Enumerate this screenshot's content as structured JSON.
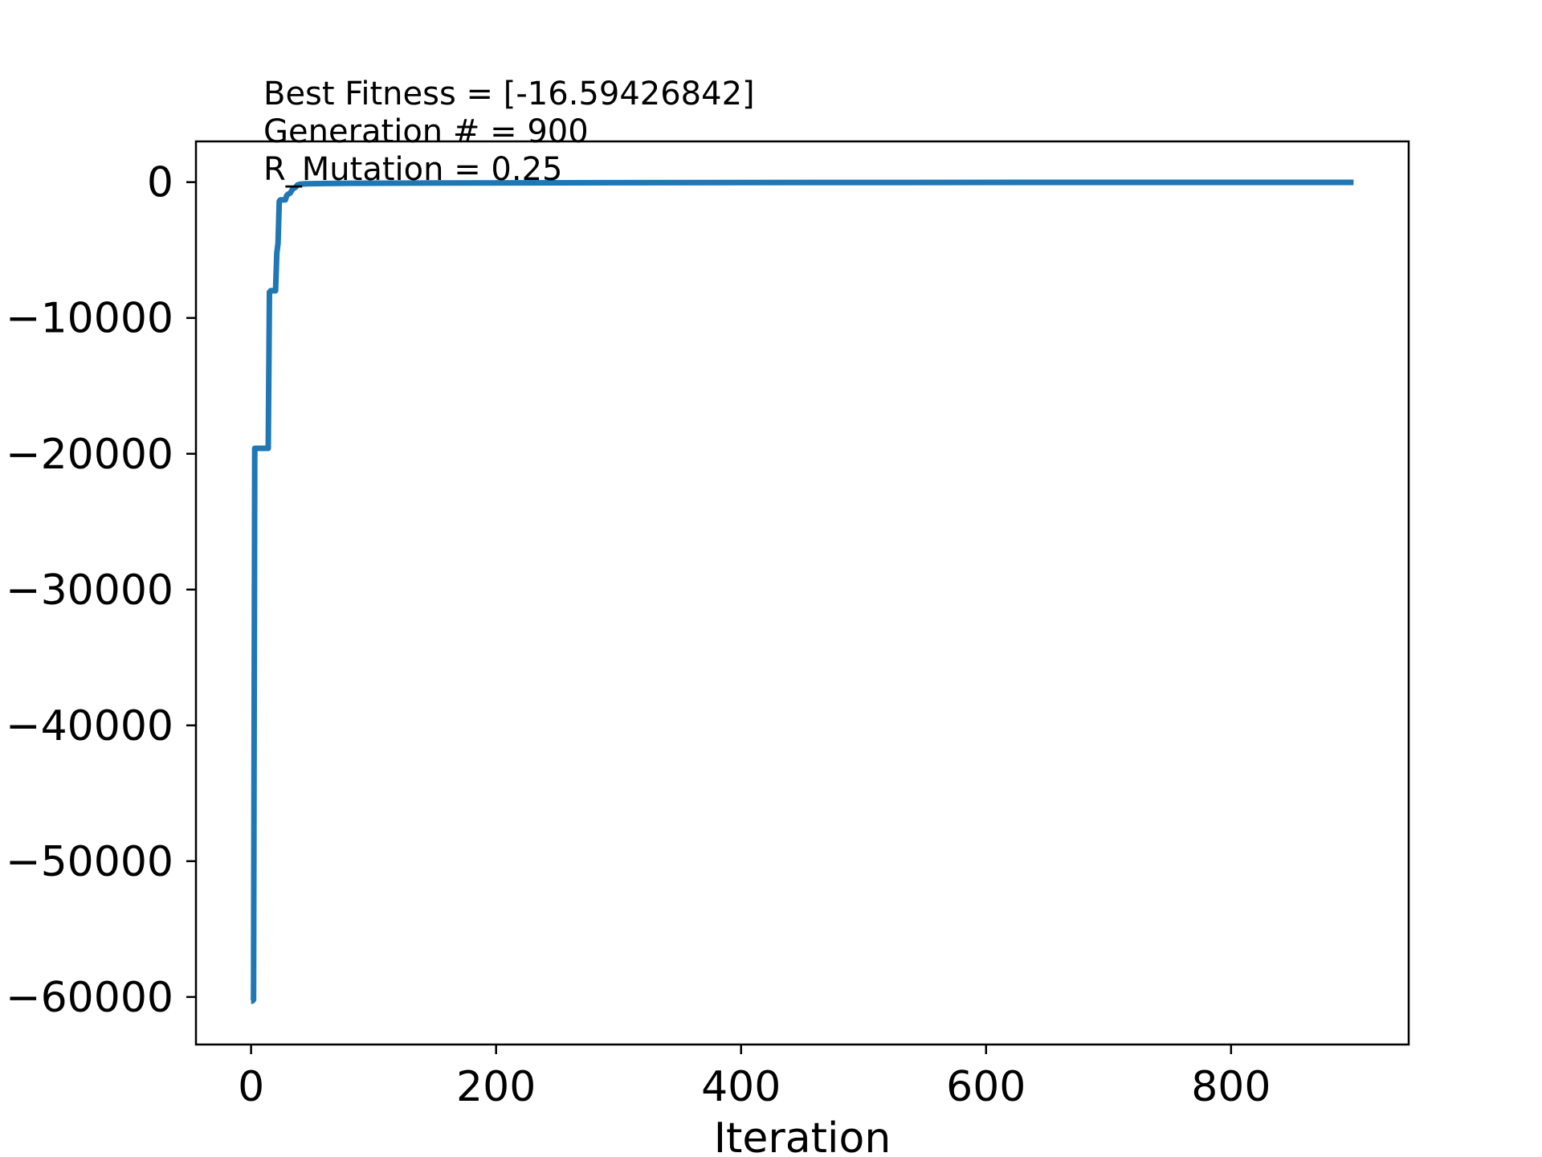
{
  "chart_data": {
    "type": "line",
    "title": "",
    "xlabel": "Iteration",
    "ylabel": "",
    "xlim": [
      -45,
      945
    ],
    "ylim": [
      -63500,
      3000
    ],
    "xticks": [
      0,
      200,
      400,
      600,
      800
    ],
    "xtick_labels": [
      "0",
      "200",
      "400",
      "600",
      "800"
    ],
    "yticks": [
      0,
      -10000,
      -20000,
      -30000,
      -40000,
      -50000,
      -60000
    ],
    "ytick_labels": [
      "0",
      "−10000",
      "−20000",
      "−30000",
      "−40000",
      "−50000",
      "−60000"
    ],
    "grid": false,
    "legend": "none",
    "annotations": [
      "Best Fitness = [-16.59426842]",
      "Generation # = 900",
      "R_Mutation = 0.25"
    ],
    "series": [
      {
        "color": "#1f77b4",
        "x": [
          0,
          1,
          2,
          3,
          14,
          15,
          16,
          20,
          21,
          22,
          23,
          24,
          28,
          29,
          30,
          32,
          34,
          36,
          38,
          40,
          45,
          60,
          80,
          150,
          300,
          500,
          700,
          900
        ],
        "y": [
          -60300,
          -60300,
          -60200,
          -19600,
          -19600,
          -8100,
          -8000,
          -8000,
          -5200,
          -4500,
          -1400,
          -1300,
          -1300,
          -1000,
          -900,
          -800,
          -500,
          -400,
          -200,
          -150,
          -120,
          -100,
          -80,
          -60,
          -40,
          -25,
          -20,
          -17
        ]
      }
    ]
  }
}
